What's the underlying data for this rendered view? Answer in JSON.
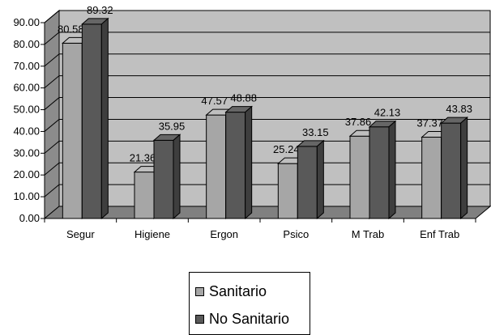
{
  "chart_data": {
    "type": "bar",
    "categories": [
      "Segur",
      "Higiene",
      "Ergon",
      "Psico",
      "M Trab",
      "Enf Trab"
    ],
    "series": [
      {
        "name": "Sanitario",
        "values": [
          80.58,
          21.36,
          47.57,
          25.24,
          37.86,
          37.37
        ],
        "value_labels": [
          "80.58",
          "21.36",
          "47.57",
          "25.24",
          "37.86",
          "37.37"
        ],
        "color": "#a6a6a6"
      },
      {
        "name": "No Sanitario",
        "values": [
          89.32,
          35.95,
          48.88,
          33.15,
          42.13,
          43.83
        ],
        "value_labels": [
          "89.32",
          "35.95",
          "48.88",
          "33.15",
          "42.13",
          "43.83"
        ],
        "color": "#595959"
      }
    ],
    "yticks": [
      "0.00",
      "10.00",
      "20.00",
      "30.00",
      "40.00",
      "50.00",
      "60.00",
      "70.00",
      "80.00",
      "90.00"
    ],
    "ylim": [
      0,
      90
    ],
    "title": "",
    "xlabel": "",
    "ylabel": "",
    "grid": true,
    "style": "3d-clustered-column",
    "legend_position": "bottom",
    "colors": {
      "wall": "#c0c0c0",
      "floor": "#808080",
      "grid": "#000000"
    }
  }
}
